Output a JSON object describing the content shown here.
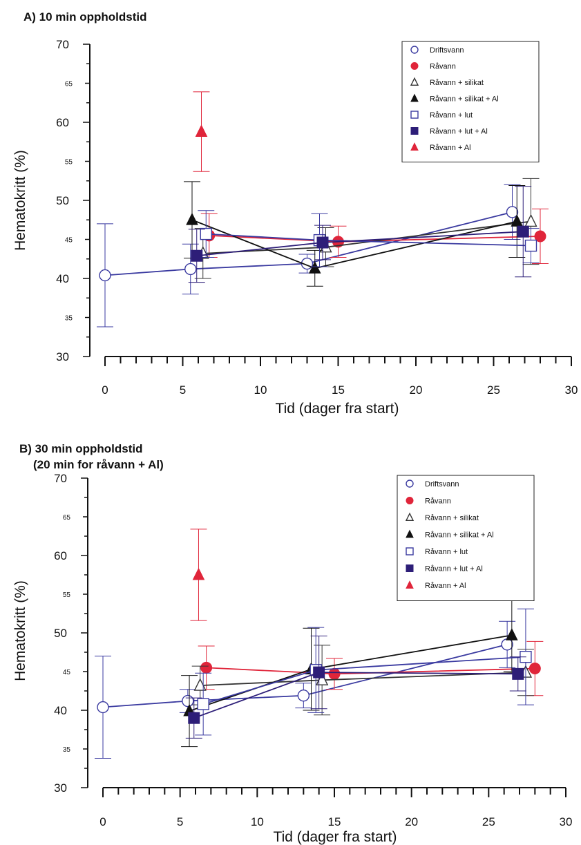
{
  "chart_data": [
    {
      "type": "line",
      "title": "A) 10 min oppholdstid",
      "xlabel": "Tid (dager fra start)",
      "ylabel": "Hematokritt (%)",
      "xlim": [
        0,
        30
      ],
      "ylim": [
        30,
        70
      ],
      "xticks": [
        "0",
        "5",
        "10",
        "15",
        "20",
        "25",
        "30"
      ],
      "yticks": [
        "30",
        "35",
        "40",
        "45",
        "50",
        "55",
        "60",
        "65",
        "70"
      ],
      "legend_position": "top-right",
      "series": [
        {
          "name": "Driftsvann",
          "marker": "circle-open",
          "color": "#3a3aa0",
          "points": [
            {
              "x": 0,
              "y": 40.4,
              "err": 6.6
            },
            {
              "x": 5.5,
              "y": 41.2,
              "err": 3.2
            },
            {
              "x": 13,
              "y": 41.9,
              "err": 1.2
            },
            {
              "x": 26.2,
              "y": 48.5,
              "err": 3.5
            }
          ]
        },
        {
          "name": "Råvann",
          "marker": "circle-filled",
          "color": "#e0253a",
          "points": [
            {
              "x": 6.7,
              "y": 45.5,
              "err": 2.8
            },
            {
              "x": 15,
              "y": 44.7,
              "err": 2.0
            },
            {
              "x": 28,
              "y": 45.4,
              "err": 3.5
            }
          ]
        },
        {
          "name": "Råvann + silikat",
          "marker": "triangle-open",
          "color": "#333333",
          "points": [
            {
              "x": 6.3,
              "y": 43.2,
              "err": 3.2
            },
            {
              "x": 14.2,
              "y": 44.0,
              "err": 2.5
            },
            {
              "x": 27.4,
              "y": 47.3,
              "err": 5.5
            }
          ]
        },
        {
          "name": "Råvann + silikat + Al",
          "marker": "triangle-filled",
          "color": "#111111",
          "points": [
            {
              "x": 5.6,
              "y": 47.5,
              "err": 4.9
            },
            {
              "x": 13.5,
              "y": 41.3,
              "err": 2.3
            },
            {
              "x": 26.5,
              "y": 47.3,
              "err": 4.6
            }
          ]
        },
        {
          "name": "Råvann + lut",
          "marker": "square-open",
          "color": "#3a3aa0",
          "points": [
            {
              "x": 6.5,
              "y": 45.7,
              "err": 3.0
            },
            {
              "x": 13.8,
              "y": 44.9,
              "err": 3.4
            },
            {
              "x": 27.4,
              "y": 44.2,
              "err": 2.2
            }
          ]
        },
        {
          "name": "Råvann + lut + Al",
          "marker": "square-filled",
          "color": "#2d1e78",
          "points": [
            {
              "x": 5.9,
              "y": 42.9,
              "err": 3.4
            },
            {
              "x": 14.0,
              "y": 44.6,
              "err": 2.2
            },
            {
              "x": 26.9,
              "y": 46.0,
              "err": 5.8
            }
          ]
        },
        {
          "name": "Råvann + Al",
          "marker": "triangle-filled",
          "color": "#e0253a",
          "points": [
            {
              "x": 6.2,
              "y": 58.8,
              "err": 5.1
            }
          ]
        }
      ]
    },
    {
      "type": "line",
      "title": "B) 30 min oppholdstid",
      "subtitle": "(20 min for råvann + Al)",
      "xlabel": "Tid (dager fra start)",
      "ylabel": "Hematokritt (%)",
      "xlim": [
        0,
        30
      ],
      "ylim": [
        30,
        70
      ],
      "xticks": [
        "0",
        "5",
        "10",
        "15",
        "20",
        "25",
        "30"
      ],
      "yticks": [
        "30",
        "35",
        "40",
        "45",
        "50",
        "55",
        "60",
        "65",
        "70"
      ],
      "legend_position": "top-right",
      "series": [
        {
          "name": "Driftsvann",
          "marker": "circle-open",
          "color": "#3a3aa0",
          "points": [
            {
              "x": 0,
              "y": 40.4,
              "err": 6.6
            },
            {
              "x": 5.5,
              "y": 41.2,
              "err": 1.5
            },
            {
              "x": 13,
              "y": 41.9,
              "err": 1.6
            },
            {
              "x": 26.2,
              "y": 48.5,
              "err": 3.0
            }
          ]
        },
        {
          "name": "Råvann",
          "marker": "circle-filled",
          "color": "#e0253a",
          "points": [
            {
              "x": 6.7,
              "y": 45.5,
              "err": 2.8
            },
            {
              "x": 15,
              "y": 44.7,
              "err": 2.0
            },
            {
              "x": 28,
              "y": 45.4,
              "err": 3.5
            }
          ]
        },
        {
          "name": "Råvann + silikat",
          "marker": "triangle-open",
          "color": "#333333",
          "points": [
            {
              "x": 6.3,
              "y": 43.2,
              "err": 2.5
            },
            {
              "x": 14.2,
              "y": 43.9,
              "err": 4.5
            },
            {
              "x": 27.4,
              "y": 44.9,
              "err": 3.0
            }
          ]
        },
        {
          "name": "Råvann + silikat + Al",
          "marker": "triangle-filled",
          "color": "#111111",
          "points": [
            {
              "x": 5.6,
              "y": 39.9,
              "err": 4.6
            },
            {
              "x": 13.5,
              "y": 45.3,
              "err": 5.3
            },
            {
              "x": 26.5,
              "y": 49.7,
              "err": 4.7
            }
          ]
        },
        {
          "name": "Råvann + lut",
          "marker": "square-open",
          "color": "#3a3aa0",
          "points": [
            {
              "x": 6.5,
              "y": 40.8,
              "err": 4.0
            },
            {
              "x": 13.8,
              "y": 45.2,
              "err": 5.5
            },
            {
              "x": 27.4,
              "y": 46.9,
              "err": 6.2
            }
          ]
        },
        {
          "name": "Råvann + lut + Al",
          "marker": "square-filled",
          "color": "#2d1e78",
          "points": [
            {
              "x": 5.9,
              "y": 39.0,
              "err": 2.6
            },
            {
              "x": 14.0,
              "y": 44.9,
              "err": 4.7
            },
            {
              "x": 26.9,
              "y": 44.7,
              "err": 2.2
            }
          ]
        },
        {
          "name": "Råvann + Al",
          "marker": "triangle-filled",
          "color": "#e0253a",
          "points": [
            {
              "x": 6.2,
              "y": 57.5,
              "err": 5.9
            }
          ]
        }
      ]
    }
  ]
}
